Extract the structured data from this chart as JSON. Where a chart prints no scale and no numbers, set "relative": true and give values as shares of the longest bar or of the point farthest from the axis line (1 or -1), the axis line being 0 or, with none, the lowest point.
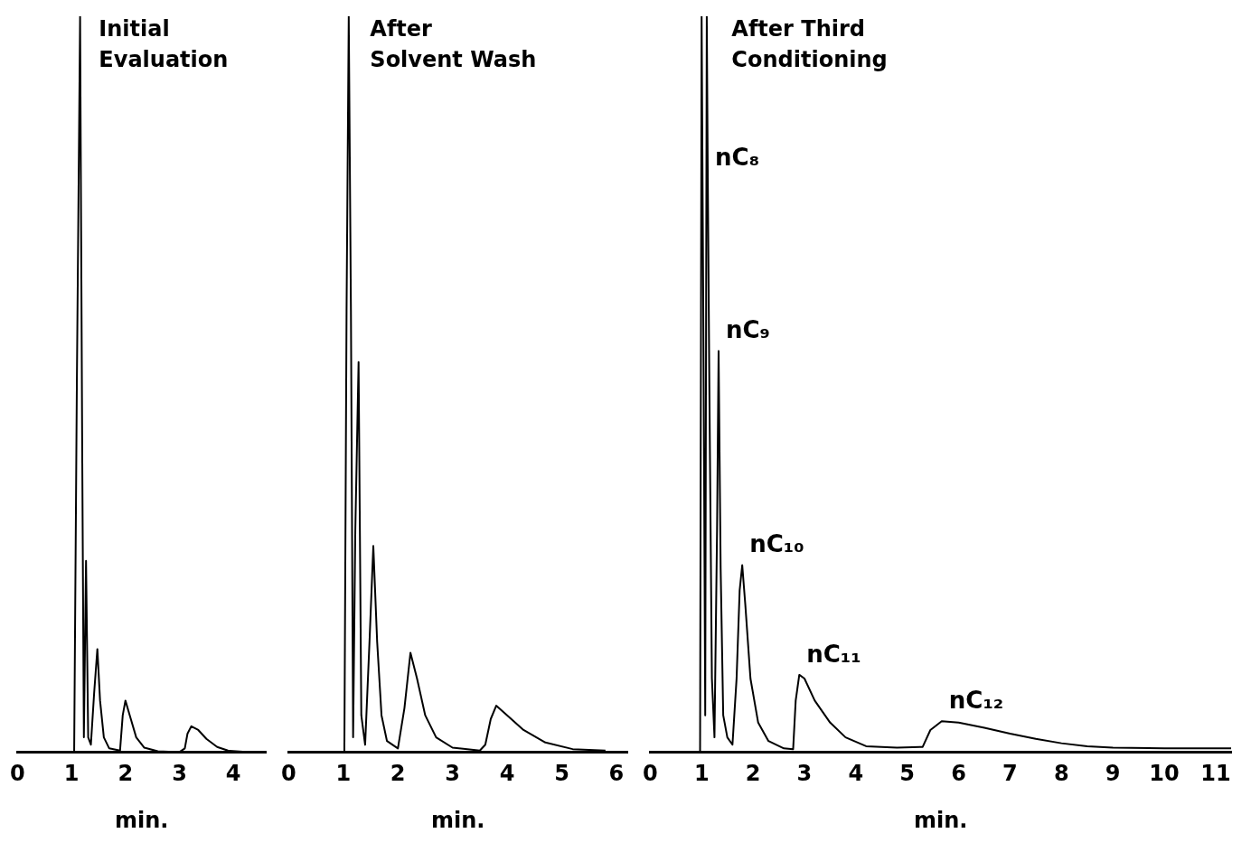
{
  "chart_data": [
    {
      "type": "line",
      "title": "Initial\nEvaluation",
      "xlabel": "min.",
      "relative": true,
      "color": "#000000",
      "xlim": [
        0,
        4.6
      ],
      "xticks": [
        0,
        1,
        2,
        3,
        4
      ],
      "grid": false,
      "legend": false,
      "x": [
        0,
        1.05,
        1.1,
        1.16,
        1.2,
        1.23,
        1.27,
        1.31,
        1.36,
        1.42,
        1.48,
        1.53,
        1.6,
        1.7,
        1.9,
        1.95,
        2.0,
        2.08,
        2.2,
        2.35,
        2.6,
        3.0,
        3.1,
        3.15,
        3.22,
        3.35,
        3.5,
        3.7,
        3.9,
        4.3
      ],
      "values": [
        0,
        0,
        0.5,
        1,
        0.4,
        0.02,
        0.26,
        0.02,
        0.01,
        0.08,
        0.14,
        0.07,
        0.02,
        0.005,
        0.002,
        0.05,
        0.07,
        0.05,
        0.02,
        0.006,
        0.001,
        0,
        0.005,
        0.025,
        0.035,
        0.03,
        0.018,
        0.007,
        0.002,
        0
      ]
    },
    {
      "type": "line",
      "title": "After\nSolvent Wash",
      "xlabel": "min.",
      "relative": true,
      "color": "#000000",
      "xlim": [
        0,
        6.2
      ],
      "xticks": [
        0,
        1,
        2,
        3,
        4,
        5,
        6
      ],
      "grid": false,
      "legend": false,
      "x": [
        0,
        1.02,
        1.06,
        1.1,
        1.14,
        1.18,
        1.22,
        1.28,
        1.33,
        1.4,
        1.48,
        1.55,
        1.62,
        1.7,
        1.8,
        2.0,
        2.12,
        2.23,
        2.35,
        2.5,
        2.7,
        3.0,
        3.5,
        3.6,
        3.7,
        3.8,
        4.0,
        4.3,
        4.7,
        5.2,
        5.8
      ],
      "values": [
        0,
        0,
        0.6,
        1,
        0.6,
        0.02,
        0.3,
        0.53,
        0.05,
        0.01,
        0.15,
        0.28,
        0.15,
        0.05,
        0.015,
        0.005,
        0.06,
        0.135,
        0.1,
        0.05,
        0.02,
        0.006,
        0.002,
        0.01,
        0.045,
        0.063,
        0.05,
        0.03,
        0.013,
        0.004,
        0.002
      ]
    },
    {
      "type": "line",
      "title": "After Third\nConditioning",
      "xlabel": "min.",
      "relative": true,
      "color": "#000000",
      "xlim": [
        0,
        11.3
      ],
      "xticks": [
        0,
        1,
        2,
        3,
        4,
        5,
        6,
        7,
        8,
        9,
        10,
        11
      ],
      "grid": false,
      "legend": false,
      "x": [
        0,
        0.97,
        1.0,
        1.04,
        1.07,
        1.1,
        1.12,
        1.15,
        1.2,
        1.25,
        1.3,
        1.33,
        1.37,
        1.42,
        1.5,
        1.6,
        1.68,
        1.74,
        1.79,
        1.85,
        1.95,
        2.1,
        2.3,
        2.6,
        2.78,
        2.83,
        2.9,
        3.0,
        3.2,
        3.5,
        3.8,
        4.2,
        4.8,
        5.3,
        5.45,
        5.67,
        6.0,
        6.5,
        7.0,
        7.5,
        8.0,
        8.5,
        9.0,
        10,
        11.3
      ],
      "values": [
        0,
        0,
        1,
        0.5,
        0.05,
        1,
        0.78,
        0.5,
        0.1,
        0.02,
        0.3,
        0.545,
        0.25,
        0.05,
        0.02,
        0.01,
        0.1,
        0.22,
        0.254,
        0.2,
        0.1,
        0.04,
        0.015,
        0.005,
        0.004,
        0.07,
        0.105,
        0.1,
        0.07,
        0.04,
        0.02,
        0.008,
        0.006,
        0.007,
        0.03,
        0.042,
        0.04,
        0.033,
        0.025,
        0.018,
        0.012,
        0.008,
        0.006,
        0.005,
        0.005
      ],
      "annotations": [
        {
          "text": "nC₈",
          "x": 1.12,
          "y": 0.78
        },
        {
          "text": "nC₉",
          "x": 1.33,
          "y": 0.545
        },
        {
          "text": "nC₁₀",
          "x": 1.79,
          "y": 0.254
        },
        {
          "text": "nC₁₁",
          "x": 2.9,
          "y": 0.105
        },
        {
          "text": "nC₁₂",
          "x": 5.67,
          "y": 0.042
        }
      ]
    }
  ]
}
